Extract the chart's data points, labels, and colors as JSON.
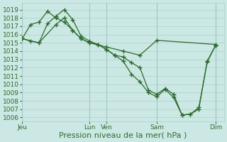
{
  "bg_color": "#cce8e4",
  "grid_color": "#aad0cc",
  "line_color": "#2d6a2d",
  "marker_color": "#2d6a2d",
  "xlabel": "Pression niveau de la mer( hPa )",
  "xlabel_fontsize": 8,
  "tick_fontsize": 6.5,
  "ylim": [
    1005.5,
    1019.8
  ],
  "yticks": [
    1006,
    1007,
    1008,
    1009,
    1010,
    1011,
    1012,
    1013,
    1014,
    1015,
    1016,
    1017,
    1018,
    1019
  ],
  "xtick_labels": [
    "Jeu",
    "Lun",
    "Ven",
    "Sam",
    "Dim"
  ],
  "xtick_positions": [
    0,
    8,
    10,
    16,
    23
  ],
  "vline_positions": [
    0,
    8,
    10,
    16,
    23
  ],
  "series1_x": [
    0,
    1,
    2,
    3,
    4,
    5,
    6,
    7,
    8,
    10,
    12,
    14,
    16,
    23
  ],
  "series1_y": [
    1015.5,
    1017.2,
    1017.5,
    1018.8,
    1018.0,
    1017.5,
    1016.5,
    1015.5,
    1015.0,
    1014.5,
    1014.0,
    1013.5,
    1015.3,
    1014.8
  ],
  "series2_x": [
    0,
    1,
    2,
    3,
    4,
    5,
    6,
    7,
    8,
    9,
    10,
    11,
    12,
    13,
    14,
    15,
    16,
    17,
    18,
    19,
    20,
    21,
    22,
    23
  ],
  "series2_y": [
    1015.5,
    1015.2,
    1015.0,
    1017.3,
    1018.2,
    1019.0,
    1017.8,
    1015.8,
    1015.2,
    1014.8,
    1014.2,
    1013.5,
    1013.3,
    1012.6,
    1012.0,
    1009.3,
    1008.8,
    1009.5,
    1008.8,
    1006.3,
    1006.4,
    1007.2,
    1012.7,
    1014.7
  ],
  "series3_x": [
    0,
    2,
    4,
    5,
    6,
    7,
    8,
    9,
    10,
    11,
    12,
    13,
    14,
    15,
    16,
    17,
    18,
    19,
    20,
    21,
    22,
    23
  ],
  "series3_y": [
    1015.5,
    1015.0,
    1017.2,
    1018.0,
    1016.5,
    1015.5,
    1015.0,
    1014.8,
    1014.2,
    1013.5,
    1012.8,
    1011.2,
    1010.3,
    1009.0,
    1008.5,
    1009.4,
    1008.4,
    1006.3,
    1006.4,
    1007.0,
    1012.8,
    1014.7
  ]
}
